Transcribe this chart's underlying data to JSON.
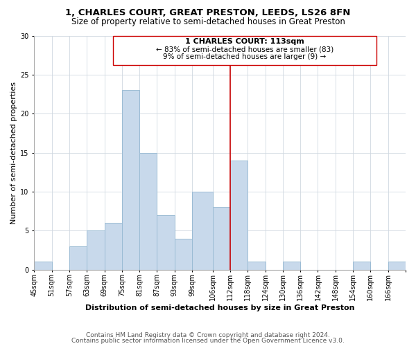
{
  "title": "1, CHARLES COURT, GREAT PRESTON, LEEDS, LS26 8FN",
  "subtitle": "Size of property relative to semi-detached houses in Great Preston",
  "xlabel": "Distribution of semi-detached houses by size in Great Preston",
  "ylabel": "Number of semi-detached properties",
  "bin_labels": [
    "45sqm",
    "51sqm",
    "57sqm",
    "63sqm",
    "69sqm",
    "75sqm",
    "81sqm",
    "87sqm",
    "93sqm",
    "99sqm",
    "106sqm",
    "112sqm",
    "118sqm",
    "124sqm",
    "130sqm",
    "136sqm",
    "142sqm",
    "148sqm",
    "154sqm",
    "160sqm",
    "166sqm"
  ],
  "bin_edges": [
    45,
    51,
    57,
    63,
    69,
    75,
    81,
    87,
    93,
    99,
    106,
    112,
    118,
    124,
    130,
    136,
    142,
    148,
    154,
    160,
    166
  ],
  "bar_heights": [
    1,
    0,
    3,
    5,
    6,
    23,
    15,
    7,
    4,
    10,
    8,
    14,
    1,
    0,
    1,
    0,
    0,
    0,
    1,
    0,
    1
  ],
  "bar_color": "#c8d9eb",
  "bar_edgecolor": "#9bbcd4",
  "bar_linewidth": 0.7,
  "vline_x": 112,
  "vline_color": "#cc0000",
  "vline_label": "1 CHARLES COURT: 113sqm",
  "annotation_smaller": "← 83% of semi-detached houses are smaller (83)",
  "annotation_larger": "9% of semi-detached houses are larger (9) →",
  "box_facecolor": "white",
  "box_edgecolor": "#cc0000",
  "ylim": [
    0,
    30
  ],
  "yticks": [
    0,
    5,
    10,
    15,
    20,
    25,
    30
  ],
  "footer1": "Contains HM Land Registry data © Crown copyright and database right 2024.",
  "footer2": "Contains public sector information licensed under the Open Government Licence v3.0.",
  "title_fontsize": 9.5,
  "subtitle_fontsize": 8.5,
  "xlabel_fontsize": 8,
  "ylabel_fontsize": 8,
  "tick_fontsize": 7,
  "annotation_fontsize": 8,
  "footer_fontsize": 6.5
}
